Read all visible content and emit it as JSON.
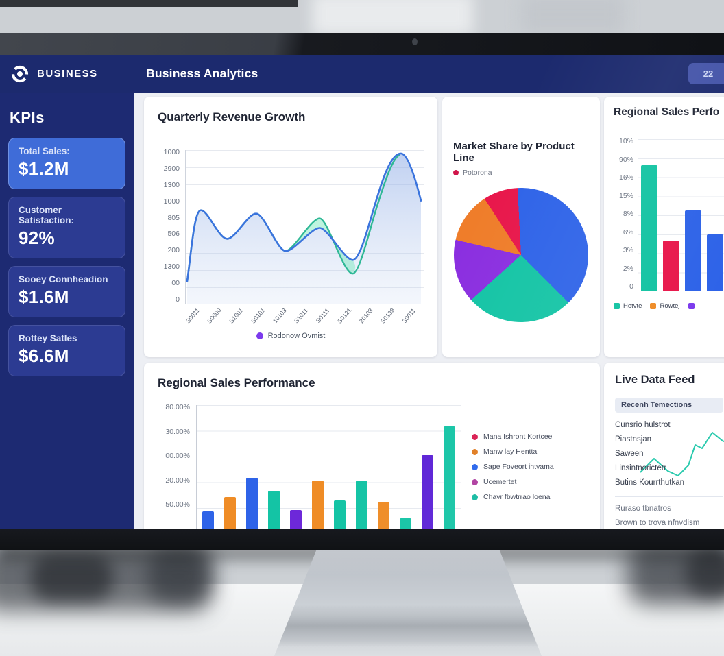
{
  "window": {
    "brand": "BUSINESS",
    "app_title": "Business Analytics",
    "header_badge": "22"
  },
  "sidebar": {
    "heading": "KPIs",
    "cards": [
      {
        "label": "Total Sales:",
        "value": "$1.2M"
      },
      {
        "label": "Customer Satisfaction:",
        "value": "92%"
      },
      {
        "label": "Sooey Connheadion",
        "value": "$1.6M"
      },
      {
        "label": "Rottey Satles",
        "value": "$6.6M"
      }
    ]
  },
  "revenue_chart": {
    "type": "line",
    "title": "Quarterly Revenue Growth",
    "y_ticks": [
      "1000",
      "2900",
      "1300",
      "1000",
      "805",
      "506",
      "200",
      "1300",
      "00",
      "0"
    ],
    "x_ticks": [
      "S0011",
      "S0000",
      "S1001",
      "S0101",
      "10103",
      "S1011",
      "S0111",
      "S0121",
      "20103",
      "S0133",
      "30011"
    ],
    "legend": {
      "label": "Rodonow Ovmist",
      "color": "#7c3aed"
    },
    "series": [
      {
        "name": "blue-area-line",
        "color": "#3b74dd",
        "values": [
          150,
          620,
          430,
          600,
          350,
          500,
          290,
          980,
          670
        ]
      },
      {
        "name": "green-line",
        "color": "#2fb896",
        "values": [
          150,
          620,
          430,
          600,
          350,
          560,
          200,
          970,
          null
        ]
      }
    ],
    "ylim": [
      0,
      1000
    ]
  },
  "market_chart": {
    "type": "pie",
    "title": "Market Share by Product Line",
    "legend": {
      "label": "Potorona",
      "color": "#d0154a"
    },
    "start_angle": -3,
    "slices": [
      {
        "name": "blue-segment",
        "color": "#2e63e8",
        "deg": 138
      },
      {
        "name": "teal-segment",
        "color": "#14c4a5",
        "deg": 93
      },
      {
        "name": "purple-segment",
        "color": "#8b2fe0",
        "deg": 55
      },
      {
        "name": "orange-segment",
        "color": "#ef7d2a",
        "deg": 44
      },
      {
        "name": "crimson-segment",
        "color": "#e8174b",
        "deg": 30
      }
    ]
  },
  "regional_mini_chart": {
    "type": "bar",
    "title": "Regional Sales Perfo",
    "y_ticks": [
      "10%",
      "90%",
      "16%",
      "15%",
      "8%",
      "6%",
      "3%",
      "2%",
      "0"
    ],
    "scale_max": 100,
    "bars": [
      {
        "color": "#12c3a2",
        "pct": 83
      },
      {
        "color": "#e8174b",
        "pct": 33
      },
      {
        "color": "#2e63e8",
        "pct": 53
      },
      {
        "color": "#2e63e8",
        "pct": 37
      }
    ],
    "legend": [
      {
        "label": "Hetvte",
        "color": "#12c3a2"
      },
      {
        "label": "Rowtej",
        "color": "#ef8c26"
      },
      {
        "label": "",
        "color": "#7c3aed"
      }
    ]
  },
  "regional_main_chart": {
    "type": "bar",
    "title": "Regional Sales Performance",
    "y_ticks": [
      "80.00%",
      "30.00%",
      "00.00%",
      "20.00%",
      "50.00%"
    ],
    "scale_max": 80,
    "bars": [
      {
        "color": "#2e63e8",
        "pct": 14
      },
      {
        "color": "#ef8c26",
        "pct": 23
      },
      {
        "color": "#2e63e8",
        "pct": 35
      },
      {
        "color": "#14c4a5",
        "pct": 27
      },
      {
        "color": "#6d28d9",
        "pct": 15
      },
      {
        "color": "#ef8c26",
        "pct": 33
      },
      {
        "color": "#14c4a5",
        "pct": 21
      },
      {
        "color": "#14c4a5",
        "pct": 33
      },
      {
        "color": "#ef8c26",
        "pct": 20
      },
      {
        "color": "#14c4a5",
        "pct": 10
      },
      {
        "color": "#5b21d6",
        "pct": 49
      },
      {
        "color": "#14c4a5",
        "pct": 67
      }
    ],
    "legend": [
      {
        "label": "Mana Ishront Kortcee",
        "color": "#d91a4f"
      },
      {
        "label": "Manw lay Hentta",
        "color": "#e07b1f"
      },
      {
        "label": "Sape Foveort ihtvama",
        "color": "#2563eb"
      },
      {
        "label": "Ucemertet",
        "color": "#ad3a9e"
      },
      {
        "label": "Chavr fbwtrrao loena",
        "color": "#12b9a0"
      }
    ]
  },
  "live_feed": {
    "title": "Live Data Feed",
    "subheader": "Recenh Temections",
    "items": [
      "Cunsrio hulstrot",
      "Piastnsjan",
      "Saween",
      "Linsintnorictetr",
      "Butins Kourrthutkan"
    ],
    "secondary_items": [
      "Ruraso tbnatros",
      "Brown to trova nfnvdism"
    ],
    "sparkline_color": "#14c4a5"
  }
}
